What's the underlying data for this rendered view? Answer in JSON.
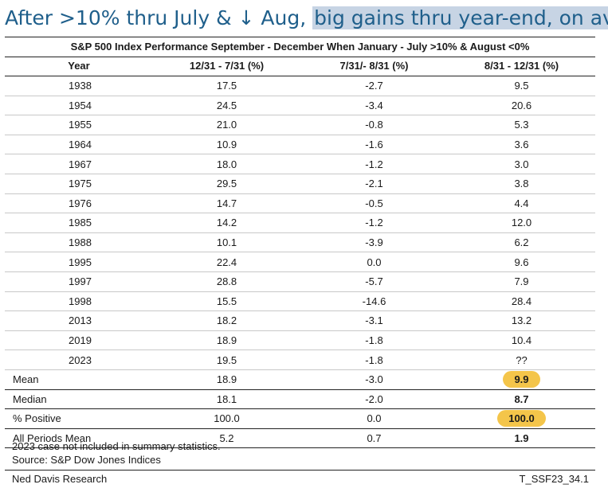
{
  "headline": {
    "part1": "After >10% thru July & ",
    "arrow": "↓",
    "part2": " Aug, ",
    "highlight": "big gains thru year-end, on avg"
  },
  "chart_data": {
    "type": "table",
    "title": "S&P 500 Index Performance September - December When January - July >10% & August <0%",
    "columns": [
      "Year",
      "12/31 - 7/31 (%)",
      "7/31/- 8/31 (%)",
      "8/31 - 12/31 (%)"
    ],
    "rows": [
      [
        "1938",
        "17.5",
        "-2.7",
        "9.5"
      ],
      [
        "1954",
        "24.5",
        "-3.4",
        "20.6"
      ],
      [
        "1955",
        "21.0",
        "-0.8",
        "5.3"
      ],
      [
        "1964",
        "10.9",
        "-1.6",
        "3.6"
      ],
      [
        "1967",
        "18.0",
        "-1.2",
        "3.0"
      ],
      [
        "1975",
        "29.5",
        "-2.1",
        "3.8"
      ],
      [
        "1976",
        "14.7",
        "-0.5",
        "4.4"
      ],
      [
        "1985",
        "14.2",
        "-1.2",
        "12.0"
      ],
      [
        "1988",
        "10.1",
        "-3.9",
        "6.2"
      ],
      [
        "1995",
        "22.4",
        "0.0",
        "9.6"
      ],
      [
        "1997",
        "28.8",
        "-5.7",
        "7.9"
      ],
      [
        "1998",
        "15.5",
        "-14.6",
        "28.4"
      ],
      [
        "2013",
        "18.2",
        "-3.1",
        "13.2"
      ],
      [
        "2019",
        "18.9",
        "-1.8",
        "10.4"
      ],
      [
        "2023",
        "19.5",
        "-1.8",
        "??"
      ]
    ],
    "summary": [
      {
        "label": "Mean",
        "values": [
          "18.9",
          "-3.0",
          "9.9"
        ],
        "emphasis": "pill"
      },
      {
        "label": "Median",
        "values": [
          "18.1",
          "-2.0",
          "8.7"
        ],
        "emphasis": "bold"
      },
      {
        "label": "% Positive",
        "values": [
          "100.0",
          "0.0",
          "100.0"
        ],
        "emphasis": "pill"
      },
      {
        "label": "All Periods Mean",
        "values": [
          "5.2",
          "0.7",
          "1.9"
        ],
        "emphasis": "bold"
      }
    ],
    "highlight_color": "#f4c54a"
  },
  "notes": [
    "2023 case not included in summary statistics.",
    "Source: S&P Dow Jones Indices"
  ],
  "footer": {
    "left": "Ned Davis Research",
    "right": "T_SSF23_34.1"
  },
  "colors": {
    "headline_text": "#1f5f8b",
    "headline_highlight": "#c7d4e4"
  }
}
